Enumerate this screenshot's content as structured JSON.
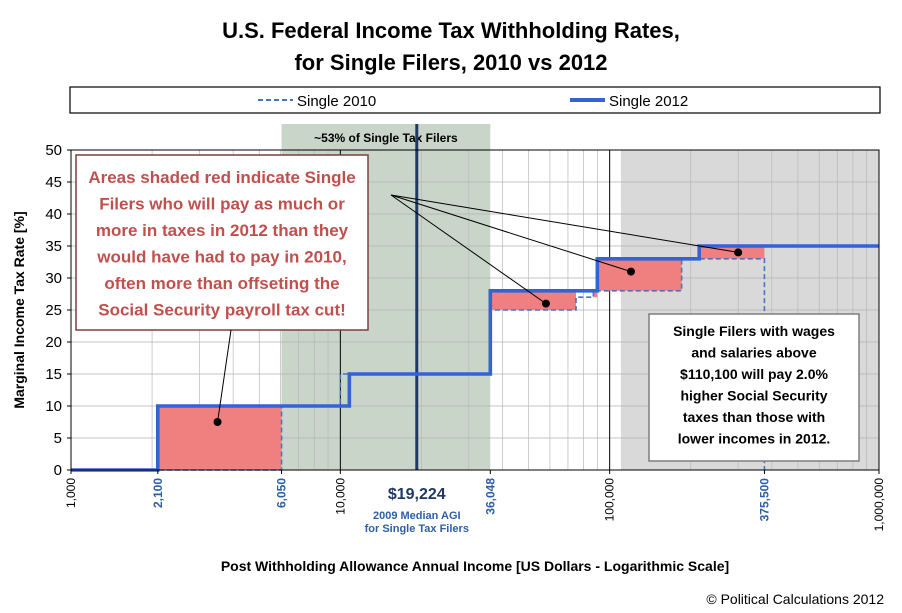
{
  "chart_data": {
    "type": "line",
    "title_lines": [
      "U.S. Federal Income Tax Withholding Rates,",
      "for Single Filers, 2010 vs 2012"
    ],
    "xlabel": "Post Withholding Allowance Annual Income [US Dollars - Logarithmic Scale]",
    "ylabel": "Marginal Income Tax Rate [%]",
    "x_scale": "log",
    "xlim": [
      1000,
      1000000
    ],
    "ylim": [
      0,
      50
    ],
    "y_ticks": [
      0,
      5,
      10,
      15,
      20,
      25,
      30,
      35,
      40,
      45,
      50
    ],
    "x_ticks_black": [
      {
        "value": 1000,
        "label": "1,000"
      },
      {
        "value": 10000,
        "label": "10,000"
      },
      {
        "value": 100000,
        "label": "100,000"
      },
      {
        "value": 1000000,
        "label": "1,000,000"
      }
    ],
    "x_ticks_blue": [
      {
        "value": 2100,
        "label": "2,100"
      },
      {
        "value": 6050,
        "label": "6,050"
      },
      {
        "value": 36048,
        "label": "36,048"
      },
      {
        "value": 375500,
        "label": "375,500"
      }
    ],
    "legend": [
      {
        "name": "Single 2010",
        "style": "dashed"
      },
      {
        "name": "Single 2012",
        "style": "solid"
      }
    ],
    "series": [
      {
        "name": "Single 2010",
        "color": "#4a72c4",
        "style": "dashed",
        "steps": [
          {
            "x": 1000,
            "y": 0
          },
          {
            "x": 6050,
            "y": 0
          },
          {
            "x": 6050,
            "y": 10
          },
          {
            "x": 10000,
            "y": 10
          },
          {
            "x": 10000,
            "y": 15
          },
          {
            "x": 36048,
            "y": 15
          },
          {
            "x": 36048,
            "y": 25
          },
          {
            "x": 75000,
            "y": 25
          },
          {
            "x": 75000,
            "y": 27
          },
          {
            "x": 87000,
            "y": 27
          },
          {
            "x": 87000,
            "y": 28
          },
          {
            "x": 185000,
            "y": 28
          },
          {
            "x": 185000,
            "y": 33
          },
          {
            "x": 375500,
            "y": 33
          },
          {
            "x": 375500,
            "y": 0
          }
        ]
      },
      {
        "name": "Single 2012",
        "color": "#3264d2",
        "style": "solid",
        "steps": [
          {
            "x": 1000,
            "y": 0
          },
          {
            "x": 2100,
            "y": 0
          },
          {
            "x": 2100,
            "y": 10
          },
          {
            "x": 10800,
            "y": 10
          },
          {
            "x": 10800,
            "y": 15
          },
          {
            "x": 36048,
            "y": 15
          },
          {
            "x": 36048,
            "y": 28
          },
          {
            "x": 90000,
            "y": 28
          },
          {
            "x": 90000,
            "y": 33
          },
          {
            "x": 215000,
            "y": 33
          },
          {
            "x": 215000,
            "y": 35
          },
          {
            "x": 1000000,
            "y": 35
          }
        ]
      }
    ],
    "red_regions": [
      [
        {
          "x": 2100,
          "y": 0
        },
        {
          "x": 2100,
          "y": 10
        },
        {
          "x": 6050,
          "y": 10
        },
        {
          "x": 6050,
          "y": 0
        }
      ],
      [
        {
          "x": 36048,
          "y": 25
        },
        {
          "x": 36048,
          "y": 28
        },
        {
          "x": 90000,
          "y": 28
        },
        {
          "x": 90000,
          "y": 27
        },
        {
          "x": 87000,
          "y": 27
        },
        {
          "x": 87000,
          "y": 28
        },
        {
          "x": 75000,
          "y": 28
        },
        {
          "x": 75000,
          "y": 27
        },
        {
          "x": 87000,
          "y": 27
        },
        {
          "x": 75000,
          "y": 27
        },
        {
          "x": 75000,
          "y": 25
        }
      ],
      [
        {
          "x": 90000,
          "y": 28
        },
        {
          "x": 90000,
          "y": 33
        },
        {
          "x": 185000,
          "y": 33
        },
        {
          "x": 185000,
          "y": 28
        }
      ],
      [
        {
          "x": 215000,
          "y": 33
        },
        {
          "x": 215000,
          "y": 35
        },
        {
          "x": 375500,
          "y": 35
        },
        {
          "x": 375500,
          "y": 33
        }
      ]
    ],
    "green_band": {
      "x_start": 6050,
      "x_end": 36048,
      "label": "~53% of Single Tax Filers"
    },
    "gray_band": {
      "x_start": 110100,
      "x_end": 1000000
    },
    "median": {
      "x": 19224,
      "value_label": "$19,224",
      "caption_lines": [
        "2009  Median AGI",
        "for Single Tax Filers"
      ]
    },
    "marker_points": [
      {
        "x": 3500,
        "y": 7.5
      },
      {
        "x": 58000,
        "y": 26
      },
      {
        "x": 120000,
        "y": 31
      },
      {
        "x": 300000,
        "y": 34
      }
    ],
    "callout_red": {
      "lines": [
        "Areas shaded red indicate Single",
        "Filers who will pay as much or",
        "more in taxes in 2012 than they",
        "would have had to pay in 2010,",
        "often more than offseting the",
        "Social Security payroll tax cut!"
      ]
    },
    "callout_gray": {
      "lines": [
        "Single Filers with wages",
        "and salaries above",
        "$110,100 will pay 2.0%",
        "higher Social Security",
        "taxes than those with",
        "lower incomes in 2012."
      ]
    },
    "copyright": "© Political Calculations 2012",
    "colors": {
      "line_2012": "#3264d2",
      "line_2010": "#4a72c4",
      "red_fill": "#f08080",
      "green_band": "#c9d5c9",
      "gray_band": "#d9d9d9",
      "median_line": "#1f3864",
      "callout_red_text": "#c0504d",
      "blue_text": "#2e5ea8"
    }
  }
}
